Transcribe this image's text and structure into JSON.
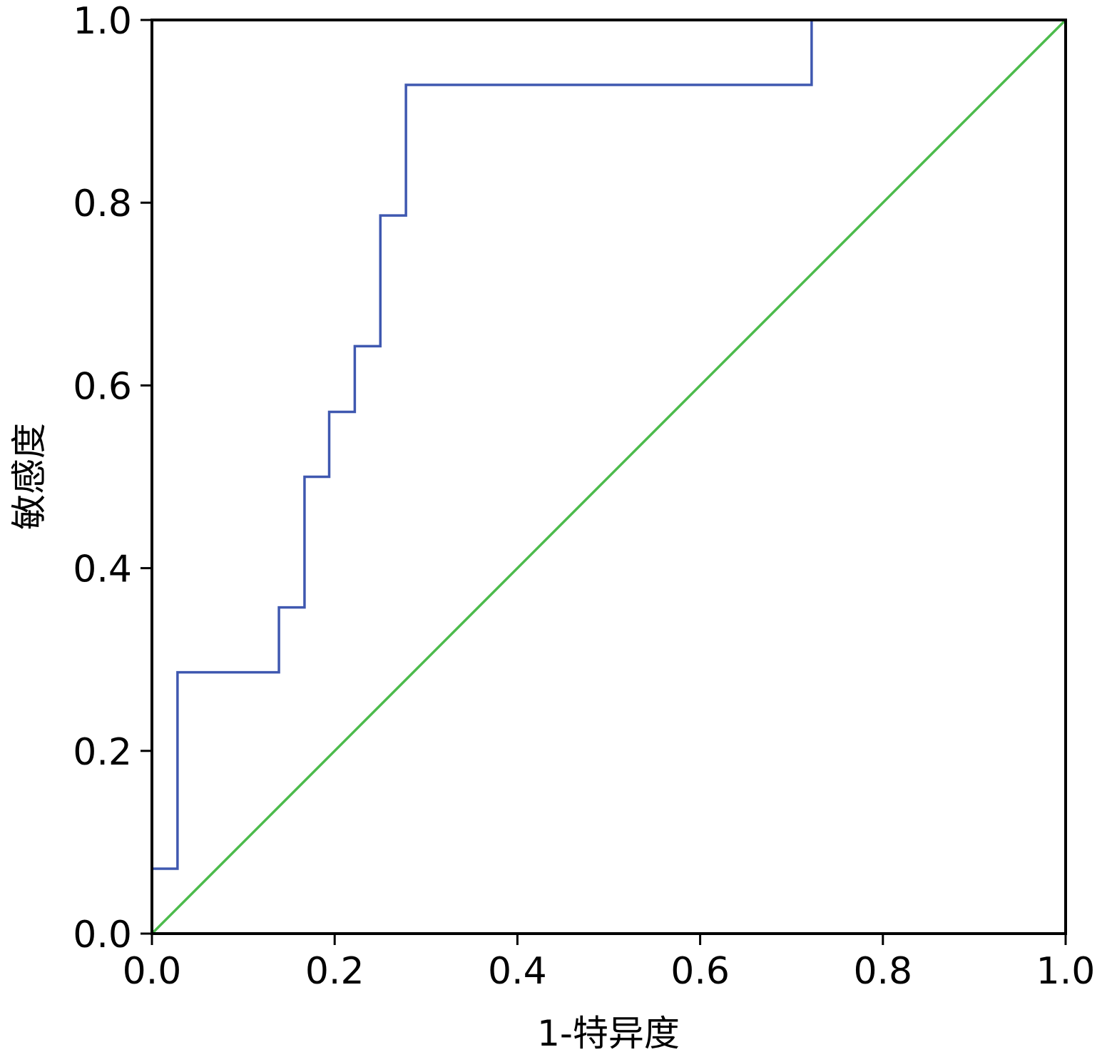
{
  "chart_data": {
    "type": "line",
    "title": "",
    "xlabel": "1-特异度",
    "ylabel": "敏感度",
    "xlim": [
      0.0,
      1.0
    ],
    "ylim": [
      0.0,
      1.0
    ],
    "x_ticks": [
      "0.0",
      "0.2",
      "0.4",
      "0.6",
      "0.8",
      "1.0"
    ],
    "y_ticks": [
      "0.0",
      "0.2",
      "0.4",
      "0.6",
      "0.8",
      "1.0"
    ],
    "grid": false,
    "legend": "none",
    "series": [
      {
        "step": true,
        "color": "#3f58b0",
        "x": [
          0.0,
          0.028,
          0.028,
          0.139,
          0.139,
          0.167,
          0.167,
          0.194,
          0.194,
          0.222,
          0.222,
          0.25,
          0.25,
          0.278,
          0.278,
          0.722,
          0.722,
          1.0
        ],
        "y": [
          0.071,
          0.071,
          0.286,
          0.286,
          0.357,
          0.357,
          0.5,
          0.5,
          0.571,
          0.571,
          0.643,
          0.643,
          0.786,
          0.786,
          0.929,
          0.929,
          1.0,
          1.0
        ]
      },
      {
        "step": false,
        "color": "#4cbb4c",
        "x": [
          0.0,
          1.0
        ],
        "y": [
          0.0,
          1.0
        ]
      }
    ]
  }
}
